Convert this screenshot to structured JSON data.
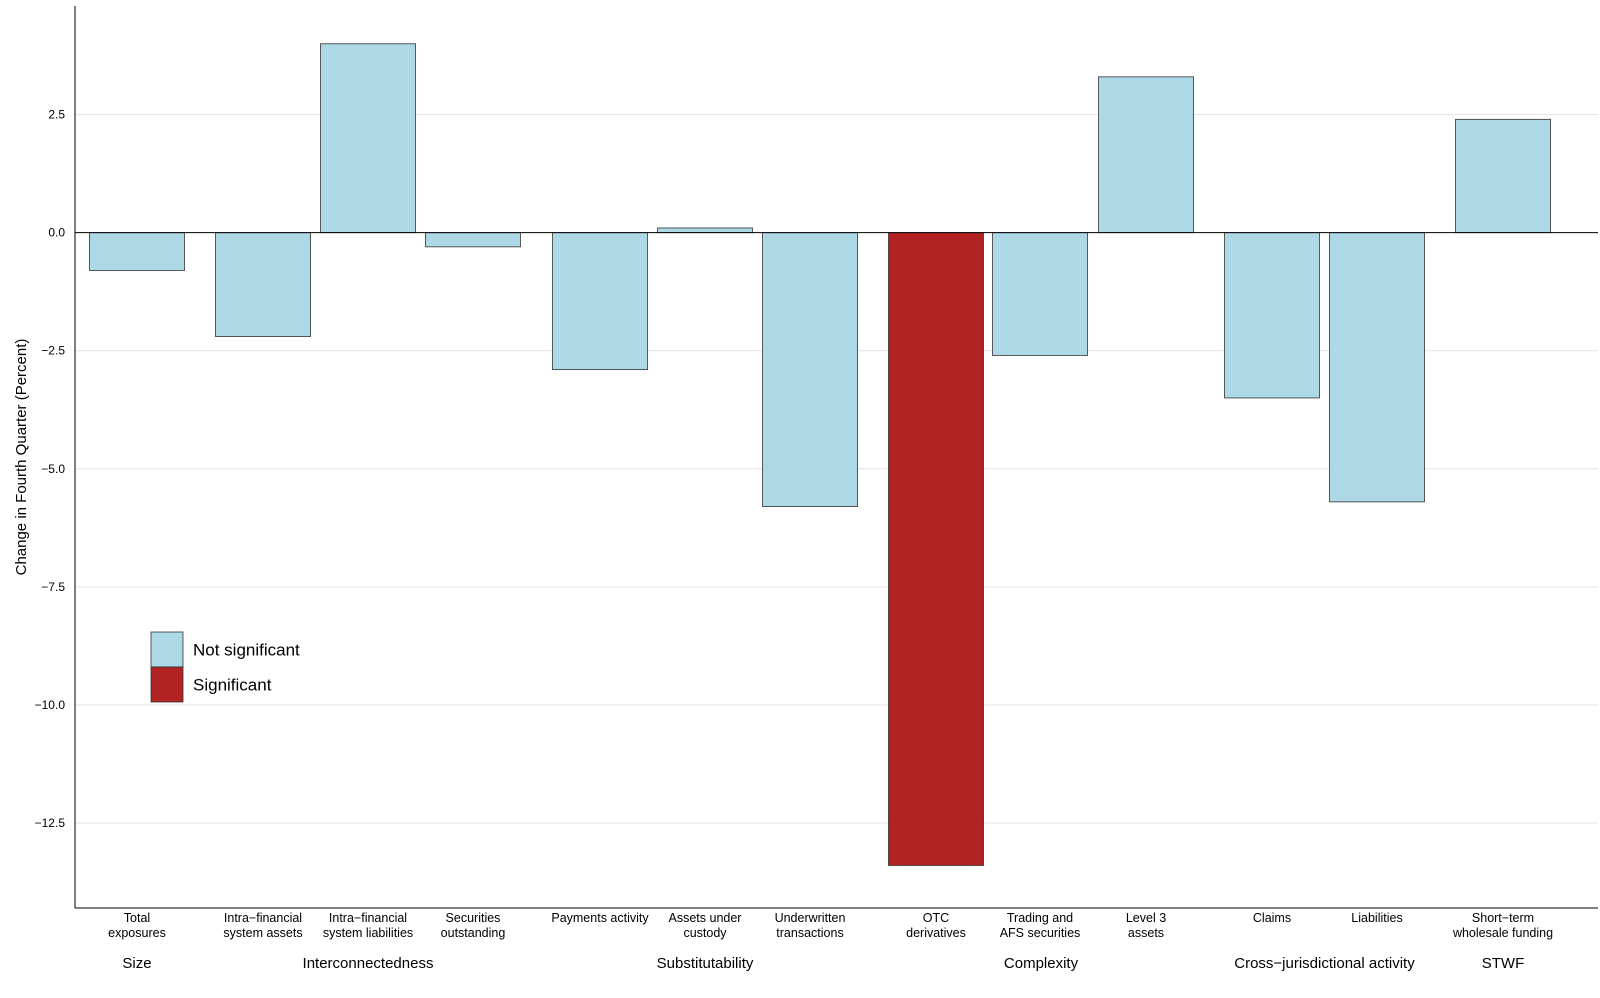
{
  "chart_data": {
    "type": "bar",
    "title": "",
    "xlabel": "",
    "ylabel": "Change in Fourth Quarter (Percent)",
    "ylim": [
      -14.3,
      4.8
    ],
    "yticks": [
      2.5,
      0.0,
      -2.5,
      -5.0,
      -7.5,
      -10.0,
      -12.5
    ],
    "ytick_labels": [
      "2.5",
      "0.0",
      "−2.5",
      "−5.0",
      "−7.5",
      "−10.0",
      "−12.5"
    ],
    "grid": true,
    "legend_position": "left",
    "colors": {
      "Not significant": "#add8e6",
      "Significant": "#b22222"
    },
    "legend": [
      {
        "label": "Not significant",
        "color": "#add8e6"
      },
      {
        "label": "Significant",
        "color": "#b22222"
      }
    ],
    "groups": [
      {
        "label": "Size",
        "categories": [
          0
        ]
      },
      {
        "label": "Interconnectedness",
        "categories": [
          1,
          2,
          3
        ]
      },
      {
        "label": "Substitutability",
        "categories": [
          4,
          5,
          6
        ]
      },
      {
        "label": "Complexity",
        "categories": [
          7,
          8,
          9
        ]
      },
      {
        "label": "Cross−jurisdictional activity",
        "categories": [
          10,
          11
        ]
      },
      {
        "label": "STWF",
        "categories": [
          12
        ]
      }
    ],
    "categories": [
      {
        "label": [
          "Total",
          "exposures"
        ],
        "value": -0.8,
        "significance": "Not significant"
      },
      {
        "label": [
          "Intra−financial",
          "system assets"
        ],
        "value": -2.2,
        "significance": "Not significant"
      },
      {
        "label": [
          "Intra−financial",
          "system liabilities"
        ],
        "value": 4.0,
        "significance": "Not significant"
      },
      {
        "label": [
          "Securities",
          "outstanding"
        ],
        "value": -0.3,
        "significance": "Not significant"
      },
      {
        "label": [
          "Payments activity"
        ],
        "value": -2.9,
        "significance": "Not significant"
      },
      {
        "label": [
          "Assets under",
          "custody"
        ],
        "value": 0.1,
        "significance": "Not significant"
      },
      {
        "label": [
          "Underwritten",
          "transactions"
        ],
        "value": -5.8,
        "significance": "Not significant"
      },
      {
        "label": [
          "OTC",
          "derivatives"
        ],
        "value": -13.4,
        "significance": "Significant"
      },
      {
        "label": [
          "Trading and",
          "AFS securities"
        ],
        "value": -2.6,
        "significance": "Not significant"
      },
      {
        "label": [
          "Level 3",
          "assets"
        ],
        "value": 3.3,
        "significance": "Not significant"
      },
      {
        "label": [
          "Claims"
        ],
        "value": -3.5,
        "significance": "Not significant"
      },
      {
        "label": [
          "Liabilities"
        ],
        "value": -5.7,
        "significance": "Not significant"
      },
      {
        "label": [
          "Short−term",
          "wholesale funding"
        ],
        "value": 2.4,
        "significance": "Not significant"
      }
    ]
  }
}
